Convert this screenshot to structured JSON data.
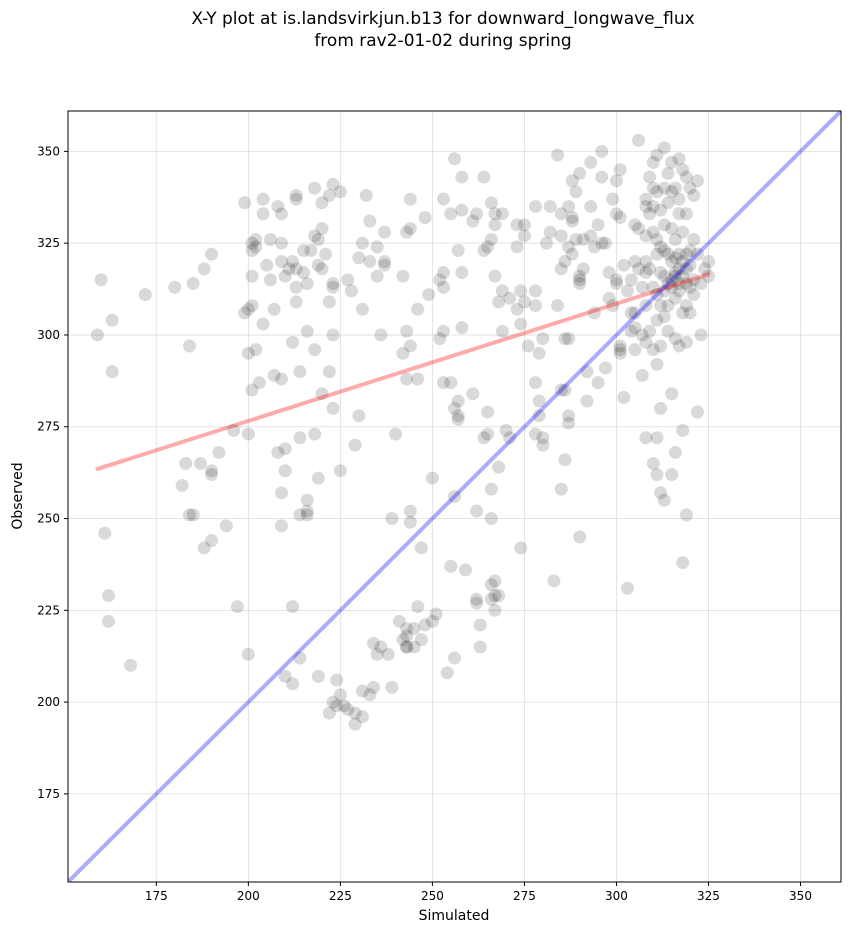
{
  "chart_data": {
    "type": "scatter",
    "title_line1": "X-Y plot at is.landsvirkjun.b13 for downward_longwave_flux",
    "title_line2": "from rav2-01-02 during spring",
    "xlabel": "Simulated",
    "ylabel": "Observed",
    "xlim": [
      151,
      361
    ],
    "ylim": [
      151,
      361
    ],
    "xticks": [
      175,
      200,
      225,
      250,
      275,
      300,
      325,
      350
    ],
    "yticks": [
      175,
      200,
      225,
      250,
      275,
      300,
      325,
      350
    ],
    "grid": true,
    "point_color": "#000000",
    "point_alpha": 0.15,
    "fit_line": {
      "color": "#ff0000",
      "x": [
        159,
        325
      ],
      "y": [
        263.5,
        316.5
      ]
    },
    "identity_line": {
      "color": "#0000ff",
      "x": [
        151,
        361
      ],
      "y": [
        151,
        361
      ]
    },
    "points": [
      [
        159,
        300
      ],
      [
        160,
        315
      ],
      [
        161,
        246
      ],
      [
        162,
        229
      ],
      [
        162,
        222
      ],
      [
        163,
        290
      ],
      [
        163,
        304
      ],
      [
        168,
        210
      ],
      [
        172,
        311
      ],
      [
        180,
        313
      ],
      [
        182,
        259
      ],
      [
        183,
        265
      ],
      [
        184,
        297
      ],
      [
        184,
        251
      ],
      [
        185,
        251
      ],
      [
        185,
        314
      ],
      [
        187,
        265
      ],
      [
        188,
        242
      ],
      [
        188,
        318
      ],
      [
        190,
        244
      ],
      [
        190,
        262
      ],
      [
        190,
        263
      ],
      [
        190,
        322
      ],
      [
        192,
        268
      ],
      [
        194,
        248
      ],
      [
        196,
        274
      ],
      [
        197,
        226
      ],
      [
        199,
        306
      ],
      [
        199,
        336
      ],
      [
        200,
        307
      ],
      [
        200,
        295
      ],
      [
        200,
        273
      ],
      [
        200,
        213
      ],
      [
        201,
        316
      ],
      [
        201,
        308
      ],
      [
        201,
        285
      ],
      [
        201,
        323
      ],
      [
        201,
        325
      ],
      [
        202,
        324
      ],
      [
        202,
        326
      ],
      [
        202,
        296
      ],
      [
        203,
        287
      ],
      [
        204,
        303
      ],
      [
        204,
        337
      ],
      [
        204,
        333
      ],
      [
        205,
        319
      ],
      [
        206,
        326
      ],
      [
        206,
        315
      ],
      [
        207,
        289
      ],
      [
        207,
        307
      ],
      [
        208,
        335
      ],
      [
        208,
        268
      ],
      [
        209,
        325
      ],
      [
        209,
        333
      ],
      [
        209,
        320
      ],
      [
        209,
        288
      ],
      [
        209,
        248
      ],
      [
        209,
        257
      ],
      [
        210,
        263
      ],
      [
        210,
        269
      ],
      [
        210,
        316
      ],
      [
        210,
        207
      ],
      [
        211,
        318
      ],
      [
        212,
        320
      ],
      [
        212,
        298
      ],
      [
        212,
        226
      ],
      [
        212,
        205
      ],
      [
        213,
        337
      ],
      [
        213,
        309
      ],
      [
        213,
        318
      ],
      [
        213,
        313
      ],
      [
        213,
        338
      ],
      [
        214,
        272
      ],
      [
        214,
        290
      ],
      [
        214,
        251
      ],
      [
        214,
        212
      ],
      [
        215,
        323
      ],
      [
        215,
        317
      ],
      [
        216,
        301
      ],
      [
        216,
        255
      ],
      [
        216,
        252
      ],
      [
        216,
        251
      ],
      [
        216,
        314
      ],
      [
        217,
        323
      ],
      [
        218,
        327
      ],
      [
        218,
        296
      ],
      [
        218,
        273
      ],
      [
        218,
        340
      ],
      [
        219,
        326
      ],
      [
        219,
        319
      ],
      [
        219,
        261
      ],
      [
        219,
        207
      ],
      [
        220,
        329
      ],
      [
        220,
        336
      ],
      [
        220,
        318
      ],
      [
        220,
        284
      ],
      [
        221,
        322
      ],
      [
        222,
        309
      ],
      [
        222,
        338
      ],
      [
        222,
        290
      ],
      [
        223,
        314
      ],
      [
        223,
        313
      ],
      [
        223,
        300
      ],
      [
        223,
        280
      ],
      [
        223,
        341
      ],
      [
        224,
        206
      ],
      [
        225,
        339
      ],
      [
        225,
        263
      ],
      [
        225,
        202
      ],
      [
        223,
        200
      ],
      [
        222,
        197
      ],
      [
        224,
        199
      ],
      [
        226,
        199
      ],
      [
        227,
        198
      ],
      [
        227,
        315
      ],
      [
        228,
        312
      ],
      [
        229,
        197
      ],
      [
        229,
        270
      ],
      [
        229,
        194
      ],
      [
        230,
        278
      ],
      [
        230,
        321
      ],
      [
        231,
        325
      ],
      [
        231,
        307
      ],
      [
        231,
        203
      ],
      [
        231,
        196
      ],
      [
        232,
        338
      ],
      [
        233,
        331
      ],
      [
        233,
        320
      ],
      [
        233,
        202
      ],
      [
        234,
        216
      ],
      [
        234,
        204
      ],
      [
        235,
        324
      ],
      [
        235,
        316
      ],
      [
        235,
        213
      ],
      [
        236,
        300
      ],
      [
        236,
        215
      ],
      [
        237,
        328
      ],
      [
        237,
        320
      ],
      [
        237,
        319
      ],
      [
        238,
        213
      ],
      [
        239,
        204
      ],
      [
        239,
        250
      ],
      [
        240,
        273
      ],
      [
        241,
        222
      ],
      [
        242,
        316
      ],
      [
        242,
        295
      ],
      [
        242,
        217
      ],
      [
        243,
        328
      ],
      [
        243,
        301
      ],
      [
        243,
        288
      ],
      [
        243,
        220
      ],
      [
        243,
        215
      ],
      [
        243,
        218
      ],
      [
        243,
        215
      ],
      [
        244,
        337
      ],
      [
        244,
        329
      ],
      [
        244,
        297
      ],
      [
        244,
        252
      ],
      [
        244,
        249
      ],
      [
        245,
        220
      ],
      [
        245,
        215
      ],
      [
        246,
        307
      ],
      [
        246,
        288
      ],
      [
        246,
        226
      ],
      [
        247,
        217
      ],
      [
        247,
        242
      ],
      [
        248,
        332
      ],
      [
        248,
        221
      ],
      [
        249,
        311
      ],
      [
        250,
        261
      ],
      [
        250,
        222
      ],
      [
        251,
        224
      ],
      [
        252,
        299
      ],
      [
        252,
        315
      ],
      [
        253,
        317
      ],
      [
        253,
        313
      ],
      [
        253,
        301
      ],
      [
        253,
        287
      ],
      [
        253,
        337
      ],
      [
        254,
        208
      ],
      [
        255,
        287
      ],
      [
        255,
        333
      ],
      [
        255,
        237
      ],
      [
        256,
        348
      ],
      [
        256,
        280
      ],
      [
        256,
        256
      ],
      [
        256,
        212
      ],
      [
        257,
        282
      ],
      [
        257,
        278
      ],
      [
        257,
        323
      ],
      [
        257,
        277
      ],
      [
        258,
        334
      ],
      [
        258,
        343
      ],
      [
        258,
        317
      ],
      [
        258,
        302
      ],
      [
        259,
        236
      ],
      [
        261,
        284
      ],
      [
        261,
        331
      ],
      [
        262,
        333
      ],
      [
        262,
        252
      ],
      [
        262,
        228
      ],
      [
        262,
        227
      ],
      [
        263,
        221
      ],
      [
        263,
        215
      ],
      [
        264,
        343
      ],
      [
        264,
        272
      ],
      [
        264,
        323
      ],
      [
        265,
        324
      ],
      [
        265,
        273
      ],
      [
        265,
        279
      ],
      [
        266,
        250
      ],
      [
        266,
        326
      ],
      [
        266,
        336
      ],
      [
        266,
        258
      ],
      [
        266,
        232
      ],
      [
        266,
        228
      ],
      [
        267,
        233
      ],
      [
        267,
        229
      ],
      [
        267,
        225
      ],
      [
        267,
        333
      ],
      [
        267,
        330
      ],
      [
        267,
        316
      ],
      [
        268,
        309
      ],
      [
        268,
        264
      ],
      [
        268,
        229
      ],
      [
        269,
        333
      ],
      [
        269,
        301
      ],
      [
        269,
        312
      ],
      [
        270,
        274
      ],
      [
        271,
        310
      ],
      [
        271,
        272
      ],
      [
        273,
        330
      ],
      [
        273,
        324
      ],
      [
        273,
        307
      ],
      [
        274,
        312
      ],
      [
        274,
        303
      ],
      [
        274,
        242
      ],
      [
        275,
        327
      ],
      [
        275,
        330
      ],
      [
        275,
        309
      ],
      [
        276,
        297
      ],
      [
        278,
        287
      ],
      [
        278,
        308
      ],
      [
        278,
        273
      ],
      [
        278,
        335
      ],
      [
        278,
        312
      ],
      [
        279,
        282
      ],
      [
        279,
        295
      ],
      [
        279,
        278
      ],
      [
        280,
        272
      ],
      [
        280,
        299
      ],
      [
        280,
        270
      ],
      [
        281,
        325
      ],
      [
        282,
        328
      ],
      [
        282,
        335
      ],
      [
        283,
        233
      ],
      [
        284,
        308
      ],
      [
        284,
        349
      ],
      [
        285,
        333
      ],
      [
        285,
        327
      ],
      [
        285,
        258
      ],
      [
        285,
        285
      ],
      [
        285,
        318
      ],
      [
        286,
        320
      ],
      [
        286,
        299
      ],
      [
        286,
        266
      ],
      [
        286,
        285
      ],
      [
        287,
        324
      ],
      [
        287,
        278
      ],
      [
        287,
        276
      ],
      [
        287,
        299
      ],
      [
        287,
        335
      ],
      [
        288,
        322
      ],
      [
        288,
        332
      ],
      [
        288,
        331
      ],
      [
        288,
        342
      ],
      [
        289,
        339
      ],
      [
        289,
        326
      ],
      [
        290,
        344
      ],
      [
        290,
        316
      ],
      [
        290,
        315
      ],
      [
        290,
        314
      ],
      [
        290,
        245
      ],
      [
        291,
        318
      ],
      [
        291,
        326
      ],
      [
        292,
        290
      ],
      [
        292,
        282
      ],
      [
        293,
        327
      ],
      [
        293,
        347
      ],
      [
        293,
        335
      ],
      [
        294,
        306
      ],
      [
        294,
        324
      ],
      [
        295,
        287
      ],
      [
        295,
        330
      ],
      [
        296,
        343
      ],
      [
        296,
        350
      ],
      [
        296,
        325
      ],
      [
        297,
        325
      ],
      [
        297,
        291
      ],
      [
        298,
        310
      ],
      [
        298,
        317
      ],
      [
        299,
        337
      ],
      [
        299,
        308
      ],
      [
        300,
        342
      ],
      [
        300,
        333
      ],
      [
        300,
        315
      ],
      [
        300,
        314
      ],
      [
        301,
        345
      ],
      [
        301,
        332
      ],
      [
        301,
        296
      ],
      [
        301,
        295
      ],
      [
        301,
        297
      ],
      [
        302,
        283
      ],
      [
        302,
        319
      ],
      [
        303,
        231
      ],
      [
        303,
        312
      ],
      [
        304,
        301
      ],
      [
        304,
        306
      ],
      [
        304,
        315
      ],
      [
        305,
        330
      ],
      [
        305,
        320
      ],
      [
        305,
        306
      ],
      [
        305,
        296
      ],
      [
        305,
        302
      ],
      [
        306,
        353
      ],
      [
        306,
        329
      ],
      [
        306,
        318
      ],
      [
        307,
        313
      ],
      [
        307,
        289
      ],
      [
        307,
        300
      ],
      [
        308,
        337
      ],
      [
        308,
        335
      ],
      [
        308,
        327
      ],
      [
        308,
        320
      ],
      [
        308,
        317
      ],
      [
        308,
        308
      ],
      [
        308,
        298
      ],
      [
        308,
        272
      ],
      [
        309,
        343
      ],
      [
        309,
        333
      ],
      [
        309,
        318
      ],
      [
        309,
        301
      ],
      [
        310,
        347
      ],
      [
        310,
        340
      ],
      [
        310,
        335
      ],
      [
        310,
        328
      ],
      [
        310,
        313
      ],
      [
        310,
        296
      ],
      [
        310,
        265
      ],
      [
        311,
        349
      ],
      [
        311,
        339
      ],
      [
        311,
        326
      ],
      [
        311,
        322
      ],
      [
        311,
        311
      ],
      [
        311,
        304
      ],
      [
        311,
        292
      ],
      [
        311,
        262
      ],
      [
        311,
        272
      ],
      [
        312,
        334
      ],
      [
        312,
        324
      ],
      [
        312,
        317
      ],
      [
        312,
        308
      ],
      [
        312,
        297
      ],
      [
        312,
        280
      ],
      [
        312,
        257
      ],
      [
        313,
        351
      ],
      [
        313,
        340
      ],
      [
        313,
        330
      ],
      [
        313,
        323
      ],
      [
        313,
        316
      ],
      [
        313,
        312
      ],
      [
        313,
        305
      ],
      [
        313,
        255
      ],
      [
        314,
        344
      ],
      [
        314,
        336
      ],
      [
        314,
        322
      ],
      [
        314,
        314
      ],
      [
        314,
        308
      ],
      [
        314,
        301
      ],
      [
        315,
        347
      ],
      [
        315,
        339
      ],
      [
        315,
        329
      ],
      [
        315,
        320
      ],
      [
        315,
        315
      ],
      [
        315,
        313
      ],
      [
        315,
        284
      ],
      [
        315,
        262
      ],
      [
        316,
        340
      ],
      [
        316,
        326
      ],
      [
        316,
        321
      ],
      [
        316,
        317
      ],
      [
        316,
        316
      ],
      [
        316,
        310
      ],
      [
        316,
        299
      ],
      [
        316,
        268
      ],
      [
        317,
        348
      ],
      [
        317,
        337
      ],
      [
        317,
        333
      ],
      [
        317,
        322
      ],
      [
        317,
        318
      ],
      [
        317,
        314
      ],
      [
        317,
        312
      ],
      [
        317,
        297
      ],
      [
        318,
        345
      ],
      [
        318,
        328
      ],
      [
        318,
        320
      ],
      [
        318,
        316
      ],
      [
        318,
        306
      ],
      [
        318,
        274
      ],
      [
        318,
        238
      ],
      [
        319,
        343
      ],
      [
        319,
        333
      ],
      [
        319,
        322
      ],
      [
        319,
        318
      ],
      [
        319,
        314
      ],
      [
        319,
        308
      ],
      [
        319,
        298
      ],
      [
        319,
        251
      ],
      [
        320,
        340
      ],
      [
        320,
        323
      ],
      [
        320,
        319
      ],
      [
        320,
        313
      ],
      [
        320,
        306
      ],
      [
        321,
        338
      ],
      [
        321,
        326
      ],
      [
        321,
        315
      ],
      [
        321,
        311
      ],
      [
        322,
        342
      ],
      [
        322,
        322
      ],
      [
        322,
        279
      ],
      [
        323,
        314
      ],
      [
        323,
        300
      ],
      [
        324,
        318
      ],
      [
        325,
        320
      ],
      [
        325,
        316
      ]
    ]
  }
}
